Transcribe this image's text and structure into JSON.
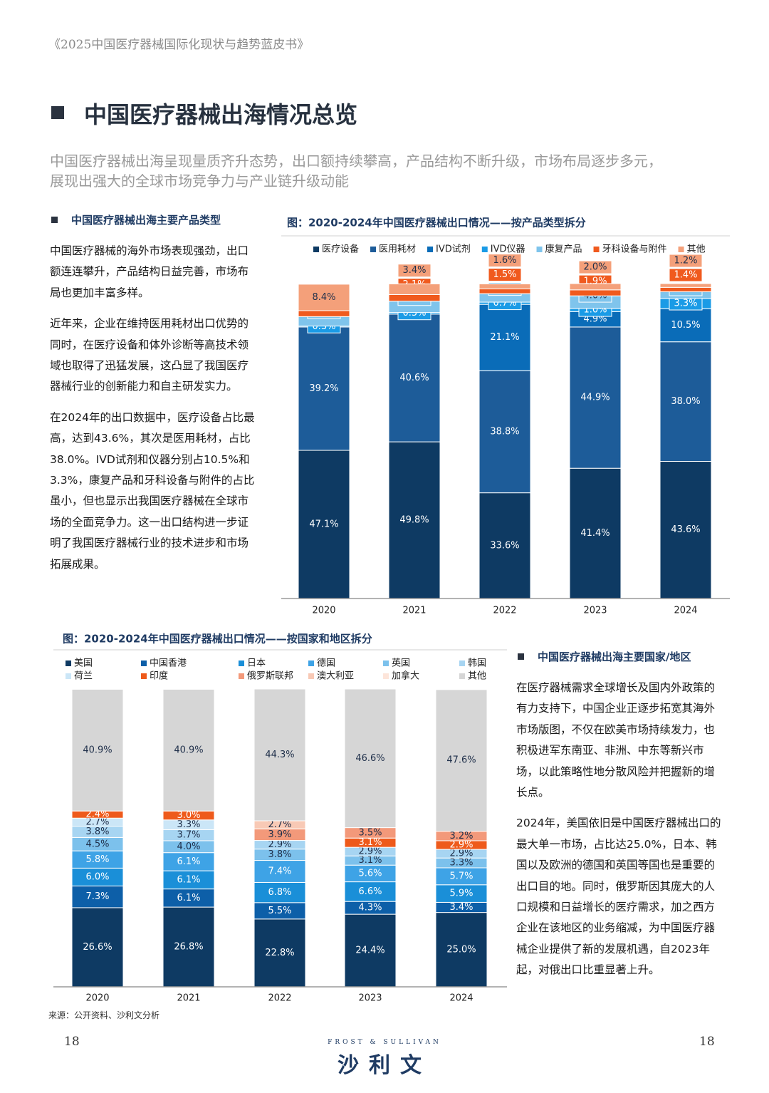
{
  "header": "《2025中国医疗器械国际化现状与趋势蓝皮书》",
  "title": "中国医疗器械出海情况总览",
  "subtitle": [
    "中国医疗器械出海呈现量质齐升态势，出口额持续攀高，产品结构不断升级，市场布局逐步多元，",
    "展现出强大的全球市场竞争力与产业链升级动能"
  ],
  "left_section": {
    "heading": "中国医疗器械出海主要产品类型",
    "paragraphs": [
      "中国医疗器械的海外市场表现强劲，出口额连连攀升，产品结构日益完善，市场布局也更加丰富多样。",
      "近年来，企业在维持医用耗材出口优势的同时，在医疗设备和体外诊断等高技术领域也取得了迅猛发展，这凸显了我国医疗器械行业的创新能力和自主研发实力。",
      "在2024年的出口数据中，医疗设备占比最高，达到43.6%，其次是医用耗材，占比38.0%。IVD试剂和仪器分别占10.5%和3.3%，康复产品和牙科设备与附件的占比虽小，但也显示出我国医疗器械在全球市场的全面竞争力。这一出口结构进一步证明了我国医疗器械行业的技术进步和市场拓展成果。"
    ]
  },
  "right_section": {
    "heading": "中国医疗器械出海主要国家/地区",
    "paragraphs": [
      "在医疗器械需求全球增长及国内外政策的有力支持下，中国企业正逐步拓宽其海外市场版图，不仅在欧美市场持续发力，也积极进军东南亚、非洲、中东等新兴市场，以此策略性地分散风险并把握新的增长点。",
      "2024年，美国依旧是中国医疗器械出口的最大单一市场，占比达25.0%，日本、韩国以及欧洲的德国和英国等国也是重要的出口目的地。同时，俄罗斯因其庞大的人口规模和日益增长的医疗需求，加之西方企业在该地区的业务缩减，为中国医疗器械企业提供了新的发展机遇，自2023年起，对俄出口比重显著上升。"
    ]
  },
  "source": "来源：公开资料、沙利文分析",
  "page_numbers": [
    "18",
    "18"
  ],
  "logo": {
    "brand": "FROST & SULLIVAN",
    "name": "沙利文"
  },
  "chart_data": [
    {
      "type": "stacked_bar",
      "title": "图：2020-2024年中国医疗器械出口情况——按产品类型拆分",
      "categories": [
        "2020",
        "2021",
        "2022",
        "2023",
        "2024"
      ],
      "series": [
        {
          "name": "医疗设备",
          "color": "#0e3a63",
          "values": [
            47.1,
            49.8,
            33.6,
            41.4,
            43.6
          ],
          "value_labels": [
            "47.1%",
            "49.8%",
            "33.6%",
            "41.4%",
            "43.6%"
          ]
        },
        {
          "name": "医用耗材",
          "color": "#1d5c99",
          "values": [
            39.2,
            40.6,
            38.8,
            44.9,
            38.0
          ],
          "value_labels": [
            "39.2%",
            "40.6%",
            "38.8%",
            "44.9%",
            "38.0%"
          ]
        },
        {
          "name": "IVD试剂",
          "color": "#0a6cb8",
          "values": [
            null,
            null,
            21.1,
            4.9,
            10.5
          ],
          "value_labels": [
            null,
            null,
            "21.1%",
            "4.9%",
            "10.5%"
          ]
        },
        {
          "name": "IVD仪器",
          "color": "#1a9be6",
          "values": [
            0.3,
            0.5,
            0.7,
            1.0,
            3.3
          ],
          "value_labels": [
            "0.3%",
            "0.5%",
            "0.7%",
            "1.0%",
            "3.3%"
          ]
        },
        {
          "name": "康复产品",
          "color": "#7fc4ec",
          "values": [
            3.0,
            3.6,
            2.7,
            4.0,
            2.1
          ],
          "value_labels": [
            "3.0%",
            "3.6%",
            "2.7%",
            "4.0%",
            "2.1%"
          ]
        },
        {
          "name": "牙科设备与附件",
          "color": "#f05a1e",
          "values": [
            1.9,
            2.1,
            1.5,
            1.9,
            1.4
          ],
          "value_labels": [
            "1.9%",
            "2.1%",
            "1.5%",
            "1.9%",
            "1.4%"
          ]
        },
        {
          "name": "其他",
          "color": "#f4a07a",
          "values": [
            8.4,
            3.4,
            1.6,
            2.0,
            1.2
          ],
          "value_labels": [
            "8.4%",
            "3.4%",
            "1.6%",
            "2.0%",
            "1.2%"
          ]
        }
      ]
    },
    {
      "type": "stacked_bar",
      "title": "图：2020-2024年中国医疗器械出口情况——按国家和地区拆分",
      "categories": [
        "2020",
        "2021",
        "2022",
        "2023",
        "2024"
      ],
      "series": [
        {
          "name": "美国",
          "color": "#0e3a63",
          "values": [
            26.6,
            26.8,
            22.8,
            24.4,
            25.0
          ],
          "value_labels": [
            "26.6%",
            "26.8%",
            "22.8%",
            "24.4%",
            "25.0%"
          ]
        },
        {
          "name": "中国香港",
          "color": "#0d5fa8",
          "values": [
            7.3,
            6.1,
            5.5,
            4.3,
            3.4
          ],
          "value_labels": [
            "7.3%",
            "6.1%",
            "5.5%",
            "4.3%",
            "3.4%"
          ]
        },
        {
          "name": "日本",
          "color": "#1a8fd8",
          "values": [
            6.0,
            6.1,
            6.8,
            6.6,
            5.9
          ],
          "value_labels": [
            "6.0%",
            "6.1%",
            "6.8%",
            "6.6%",
            "5.9%"
          ]
        },
        {
          "name": "德国",
          "color": "#3ea3e6",
          "values": [
            5.8,
            6.1,
            7.4,
            5.6,
            5.7
          ],
          "value_labels": [
            "5.8%",
            "6.1%",
            "7.4%",
            "5.6%",
            "5.7%"
          ]
        },
        {
          "name": "英国",
          "color": "#7cc1ec",
          "values": [
            4.5,
            4.0,
            3.8,
            3.1,
            3.3
          ],
          "value_labels": [
            "4.5%",
            "4.0%",
            "3.8%",
            "3.1%",
            "3.3%"
          ]
        },
        {
          "name": "韩国",
          "color": "#a7d5f2",
          "values": [
            3.8,
            3.7,
            2.9,
            2.9,
            2.9
          ],
          "value_labels": [
            "3.8%",
            "3.7%",
            "2.9%",
            "2.9%",
            "2.9%"
          ]
        },
        {
          "name": "荷兰",
          "color": "#cbe6f7",
          "values": [
            2.7,
            3.3,
            null,
            null,
            null
          ],
          "value_labels": [
            "2.7%",
            "3.3%",
            null,
            null,
            null
          ]
        },
        {
          "name": "印度",
          "color": "#ee5a1b",
          "values": [
            2.4,
            3.0,
            null,
            3.1,
            2.9
          ],
          "value_labels": [
            "2.4%",
            "3.0%",
            null,
            "3.1%",
            "2.9%"
          ]
        },
        {
          "name": "俄罗斯联邦",
          "color": "#f3997a",
          "values": [
            null,
            null,
            3.9,
            3.5,
            3.2
          ],
          "value_labels": [
            null,
            null,
            "3.9%",
            "3.5%",
            "3.2%"
          ]
        },
        {
          "name": "澳大利亚",
          "color": "#f8c9b5",
          "values": [
            null,
            null,
            2.7,
            null,
            null
          ],
          "value_labels": [
            null,
            null,
            "2.7%",
            null,
            null
          ]
        },
        {
          "name": "加拿大",
          "color": "#fde5da",
          "values": [
            null,
            null,
            null,
            null,
            null
          ],
          "value_labels": [
            null,
            null,
            null,
            null,
            null
          ]
        },
        {
          "name": "其他",
          "color": "#d6d6d6",
          "values": [
            40.9,
            40.9,
            44.3,
            46.6,
            47.6
          ],
          "value_labels": [
            "40.9%",
            "40.9%",
            "44.3%",
            "46.6%",
            "47.6%"
          ]
        }
      ]
    }
  ]
}
